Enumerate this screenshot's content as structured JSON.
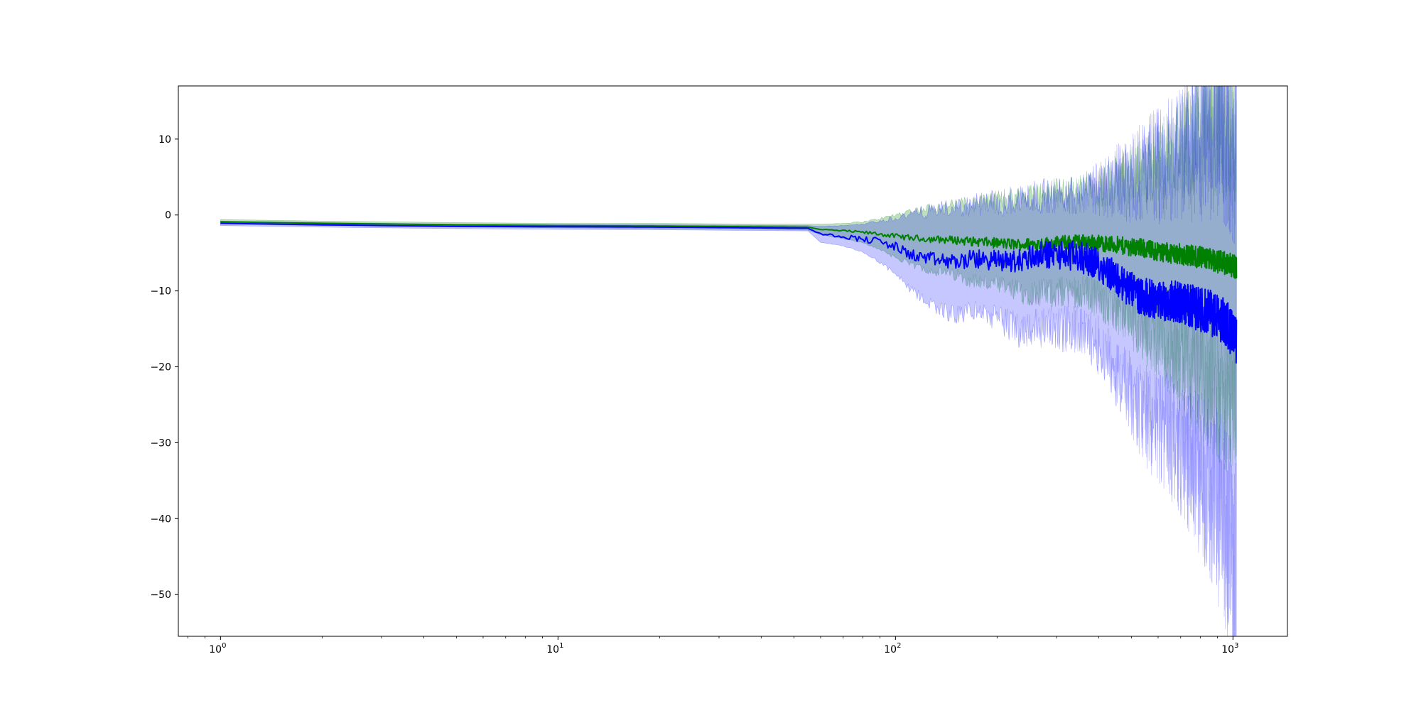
{
  "chart_data": {
    "type": "line",
    "title": "",
    "xlabel": "",
    "ylabel": "",
    "x_scale": "log",
    "xlim": [
      0.75,
      1450
    ],
    "ylim": [
      -55.5,
      17
    ],
    "grid": false,
    "legend": "none",
    "x_ticks": [
      {
        "value": 1,
        "base": "10",
        "exp": "0"
      },
      {
        "value": 10,
        "base": "10",
        "exp": "1"
      },
      {
        "value": 100,
        "base": "10",
        "exp": "2"
      },
      {
        "value": 1000,
        "base": "10",
        "exp": "3"
      }
    ],
    "y_ticks": [
      {
        "value": 10,
        "label": "10"
      },
      {
        "value": 0,
        "label": "0"
      },
      {
        "value": -10,
        "label": "−10"
      },
      {
        "value": -20,
        "label": "−20"
      },
      {
        "value": -30,
        "label": "−30"
      },
      {
        "value": -40,
        "label": "−40"
      },
      {
        "value": -50,
        "label": "−50"
      }
    ],
    "series": [
      {
        "color": "#008000",
        "band_color": "#008000",
        "band_opacity": 0.25,
        "line": [
          [
            1,
            -0.9
          ],
          [
            2,
            -1.1
          ],
          [
            5,
            -1.3
          ],
          [
            10,
            -1.4
          ],
          [
            20,
            -1.45
          ],
          [
            40,
            -1.55
          ],
          [
            55,
            -1.6
          ],
          [
            60,
            -1.9
          ],
          [
            70,
            -2.1
          ],
          [
            80,
            -2.3
          ],
          [
            90,
            -2.5
          ],
          [
            100,
            -2.8
          ],
          [
            110,
            -3.0
          ],
          [
            130,
            -3.2
          ],
          [
            150,
            -3.3
          ],
          [
            170,
            -3.5
          ],
          [
            200,
            -3.7
          ],
          [
            230,
            -3.9
          ],
          [
            260,
            -3.8
          ],
          [
            300,
            -3.7
          ],
          [
            340,
            -3.5
          ],
          [
            380,
            -3.6
          ],
          [
            420,
            -3.8
          ],
          [
            480,
            -4.1
          ],
          [
            540,
            -4.4
          ],
          [
            600,
            -4.8
          ],
          [
            680,
            -5.1
          ],
          [
            760,
            -5.4
          ],
          [
            860,
            -5.9
          ],
          [
            960,
            -6.4
          ],
          [
            1024,
            -6.8
          ]
        ],
        "upper": [
          [
            1,
            -0.6
          ],
          [
            2,
            -0.8
          ],
          [
            5,
            -1.0
          ],
          [
            10,
            -1.1
          ],
          [
            20,
            -1.1
          ],
          [
            40,
            -1.2
          ],
          [
            55,
            -1.2
          ],
          [
            60,
            -1.2
          ],
          [
            70,
            -1.1
          ],
          [
            80,
            -0.9
          ],
          [
            90,
            -0.5
          ],
          [
            100,
            0.0
          ],
          [
            110,
            0.5
          ],
          [
            130,
            1.0
          ],
          [
            150,
            1.3
          ],
          [
            170,
            1.6
          ],
          [
            200,
            1.9
          ],
          [
            230,
            2.3
          ],
          [
            260,
            2.6
          ],
          [
            300,
            2.8
          ],
          [
            340,
            3.0
          ],
          [
            380,
            3.3
          ],
          [
            420,
            4.0
          ],
          [
            480,
            5.0
          ],
          [
            540,
            6.0
          ],
          [
            600,
            7.0
          ],
          [
            680,
            8.5
          ],
          [
            760,
            10.0
          ],
          [
            860,
            11.0
          ],
          [
            960,
            11.5
          ],
          [
            1024,
            10.0
          ]
        ],
        "lower": [
          [
            1,
            -1.2
          ],
          [
            2,
            -1.4
          ],
          [
            5,
            -1.6
          ],
          [
            10,
            -1.7
          ],
          [
            20,
            -1.8
          ],
          [
            40,
            -1.9
          ],
          [
            55,
            -2.0
          ],
          [
            60,
            -2.6
          ],
          [
            70,
            -3.1
          ],
          [
            80,
            -3.7
          ],
          [
            90,
            -4.5
          ],
          [
            100,
            -5.6
          ],
          [
            110,
            -6.5
          ],
          [
            130,
            -7.4
          ],
          [
            150,
            -7.9
          ],
          [
            170,
            -8.6
          ],
          [
            200,
            -9.3
          ],
          [
            230,
            -10.1
          ],
          [
            260,
            -10.2
          ],
          [
            300,
            -10.2
          ],
          [
            340,
            -10.0
          ],
          [
            380,
            -10.5
          ],
          [
            420,
            -11.6
          ],
          [
            480,
            -13.2
          ],
          [
            540,
            -14.8
          ],
          [
            600,
            -16.6
          ],
          [
            680,
            -18.7
          ],
          [
            760,
            -20.8
          ],
          [
            860,
            -22.8
          ],
          [
            960,
            -24.3
          ],
          [
            1024,
            -23.6
          ]
        ]
      },
      {
        "color": "#0000ff",
        "band_color": "#0000ff",
        "band_opacity": 0.22,
        "line": [
          [
            1,
            -1.1
          ],
          [
            2,
            -1.3
          ],
          [
            5,
            -1.5
          ],
          [
            10,
            -1.55
          ],
          [
            20,
            -1.6
          ],
          [
            40,
            -1.7
          ],
          [
            55,
            -1.75
          ],
          [
            60,
            -2.5
          ],
          [
            70,
            -2.8
          ],
          [
            80,
            -3.2
          ],
          [
            90,
            -3.5
          ],
          [
            100,
            -4.2
          ],
          [
            110,
            -5.2
          ],
          [
            130,
            -5.9
          ],
          [
            150,
            -6.2
          ],
          [
            170,
            -5.8
          ],
          [
            200,
            -6.0
          ],
          [
            230,
            -6.1
          ],
          [
            260,
            -5.3
          ],
          [
            300,
            -5.2
          ],
          [
            340,
            -5.4
          ],
          [
            380,
            -6.0
          ],
          [
            420,
            -7.1
          ],
          [
            480,
            -9.4
          ],
          [
            540,
            -10.8
          ],
          [
            600,
            -11.2
          ],
          [
            680,
            -11.4
          ],
          [
            760,
            -12.1
          ],
          [
            860,
            -12.9
          ],
          [
            960,
            -14.3
          ],
          [
            1024,
            -16.8
          ]
        ],
        "upper": [
          [
            1,
            -0.8
          ],
          [
            2,
            -1.0
          ],
          [
            5,
            -1.2
          ],
          [
            10,
            -1.25
          ],
          [
            20,
            -1.3
          ],
          [
            40,
            -1.35
          ],
          [
            55,
            -1.4
          ],
          [
            60,
            -1.5
          ],
          [
            70,
            -1.4
          ],
          [
            80,
            -1.2
          ],
          [
            90,
            -0.8
          ],
          [
            100,
            -0.4
          ],
          [
            110,
            0.1
          ],
          [
            130,
            0.6
          ],
          [
            150,
            0.9
          ],
          [
            170,
            1.3
          ],
          [
            200,
            1.6
          ],
          [
            230,
            2.0
          ],
          [
            260,
            2.4
          ],
          [
            300,
            2.6
          ],
          [
            340,
            2.8
          ],
          [
            380,
            3.1
          ],
          [
            420,
            3.8
          ],
          [
            480,
            4.8
          ],
          [
            540,
            5.8
          ],
          [
            600,
            6.6
          ],
          [
            680,
            8.0
          ],
          [
            760,
            9.8
          ],
          [
            860,
            11.5
          ],
          [
            960,
            11.8
          ],
          [
            1024,
            10.0
          ]
        ],
        "lower": [
          [
            1,
            -1.4
          ],
          [
            2,
            -1.6
          ],
          [
            5,
            -1.8
          ],
          [
            10,
            -1.9
          ],
          [
            20,
            -1.95
          ],
          [
            40,
            -2.05
          ],
          [
            55,
            -2.1
          ],
          [
            60,
            -3.6
          ],
          [
            70,
            -4.1
          ],
          [
            80,
            -4.9
          ],
          [
            90,
            -6.2
          ],
          [
            100,
            -7.8
          ],
          [
            110,
            -9.8
          ],
          [
            130,
            -11.9
          ],
          [
            150,
            -13.3
          ],
          [
            170,
            -12.5
          ],
          [
            200,
            -13.6
          ],
          [
            230,
            -15.1
          ],
          [
            260,
            -14.6
          ],
          [
            300,
            -14.9
          ],
          [
            340,
            -15.1
          ],
          [
            380,
            -16.1
          ],
          [
            420,
            -18.3
          ],
          [
            480,
            -22.8
          ],
          [
            540,
            -26.1
          ],
          [
            600,
            -28.0
          ],
          [
            680,
            -29.9
          ],
          [
            760,
            -32.7
          ],
          [
            860,
            -36.2
          ],
          [
            960,
            -41.2
          ],
          [
            1024,
            -47.5
          ]
        ]
      }
    ]
  }
}
